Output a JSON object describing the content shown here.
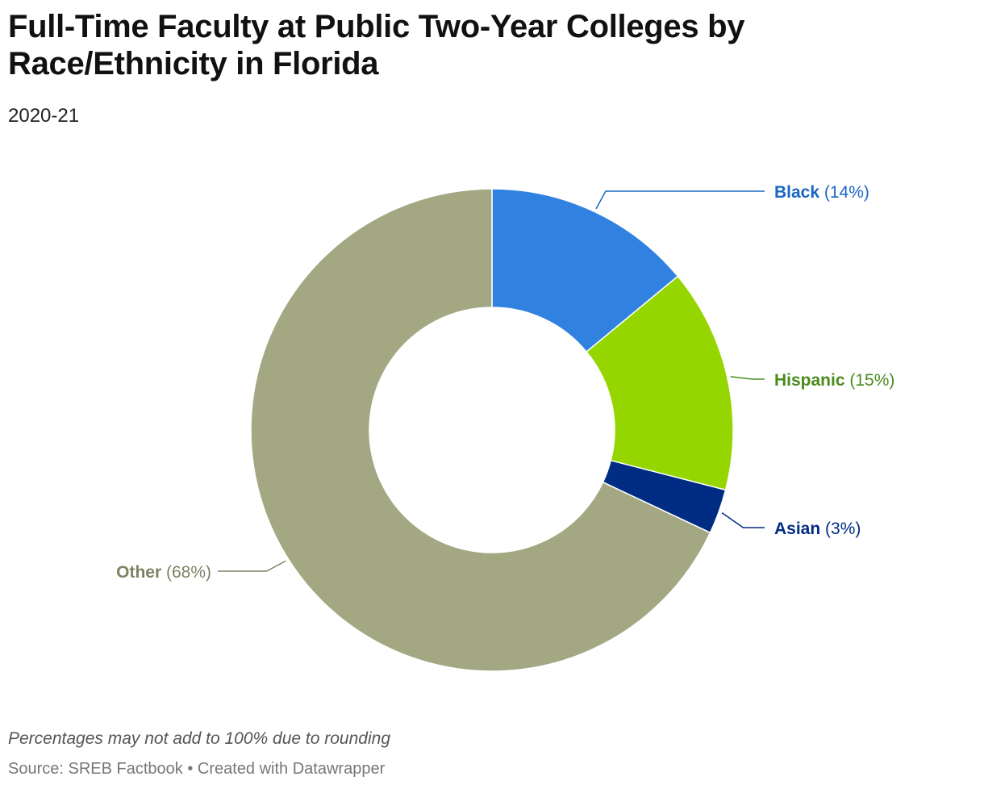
{
  "title": "Full-Time Faculty at Public Two-Year Colleges by Race/Ethnicity in Florida",
  "subtitle": "2020-21",
  "note": "Percentages may not add to 100% due to rounding",
  "footer": {
    "source": "Source: SREB Factbook",
    "separator": " • ",
    "credit": "Created with Datawrapper"
  },
  "chart_data": {
    "type": "pie",
    "variant": "donut",
    "categories": [
      "Black",
      "Hispanic",
      "Asian",
      "Other"
    ],
    "values": [
      14,
      15,
      3,
      68
    ],
    "labels": [
      "(14%)",
      "(15%)",
      "(3%)",
      "(68%)"
    ],
    "colors": [
      "#3182e0",
      "#95d600",
      "#002c84",
      "#a3a883"
    ],
    "label_colors": [
      "#1a66c4",
      "#4a8c1c",
      "#002c84",
      "#7e8264"
    ],
    "title": "Full-Time Faculty at Public Two-Year Colleges by Race/Ethnicity in Florida",
    "subtitle": "2020-21",
    "legend": "none"
  }
}
